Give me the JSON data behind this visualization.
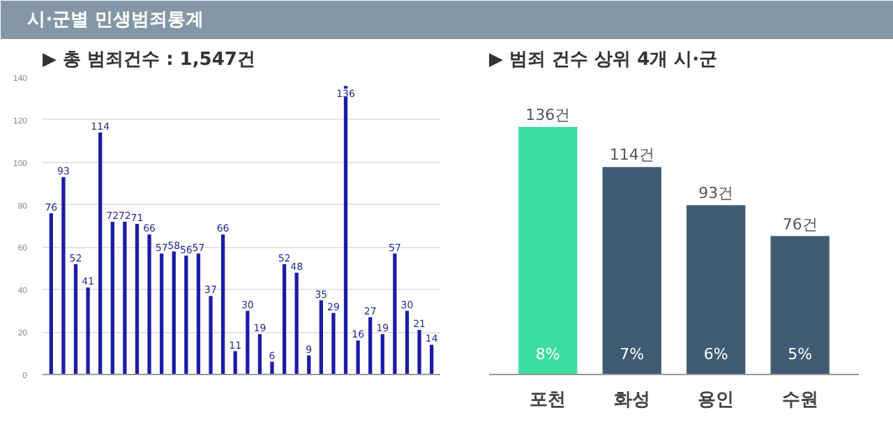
{
  "chart_data": [
    {
      "type": "bar",
      "title": "▶ 총 범죄건수 : 1,547건",
      "annotations": [
        "시·군별 민생범죄통계"
      ],
      "categories": [
        null,
        null,
        null,
        null,
        null,
        null,
        null,
        null,
        null,
        null,
        null,
        null,
        null,
        null,
        null,
        null,
        null,
        null,
        null,
        null,
        null,
        null,
        null,
        null,
        null,
        null,
        null,
        null,
        null,
        null,
        null,
        null
      ],
      "values": [
        76,
        93,
        52,
        41,
        114,
        72,
        72,
        71,
        66,
        57,
        58,
        56,
        57,
        37,
        66,
        11,
        30,
        19,
        6,
        52,
        48,
        9,
        35,
        29,
        136,
        16,
        27,
        19,
        57,
        30,
        21,
        14
      ],
      "color": "#1c1ca8",
      "data_labels": true,
      "ylim": [
        0,
        140
      ],
      "yticks": [
        0,
        20,
        40,
        60,
        80,
        100,
        120,
        140
      ],
      "grid": "y"
    },
    {
      "type": "bar",
      "title": "▶ 범죄 건수 상위 4개 시·군",
      "categories": [
        "포천",
        "화성",
        "용인",
        "수원"
      ],
      "values": [
        136,
        114,
        93,
        76
      ],
      "colors": [
        "#3ddca0",
        "#3f5b74",
        "#3f5b74",
        "#3f5b74"
      ],
      "value_labels": [
        "136건",
        "114건",
        "93건",
        "76건"
      ],
      "annotations": [
        "8%",
        "7%",
        "6%",
        "5%"
      ],
      "tick_labels": "x"
    }
  ]
}
